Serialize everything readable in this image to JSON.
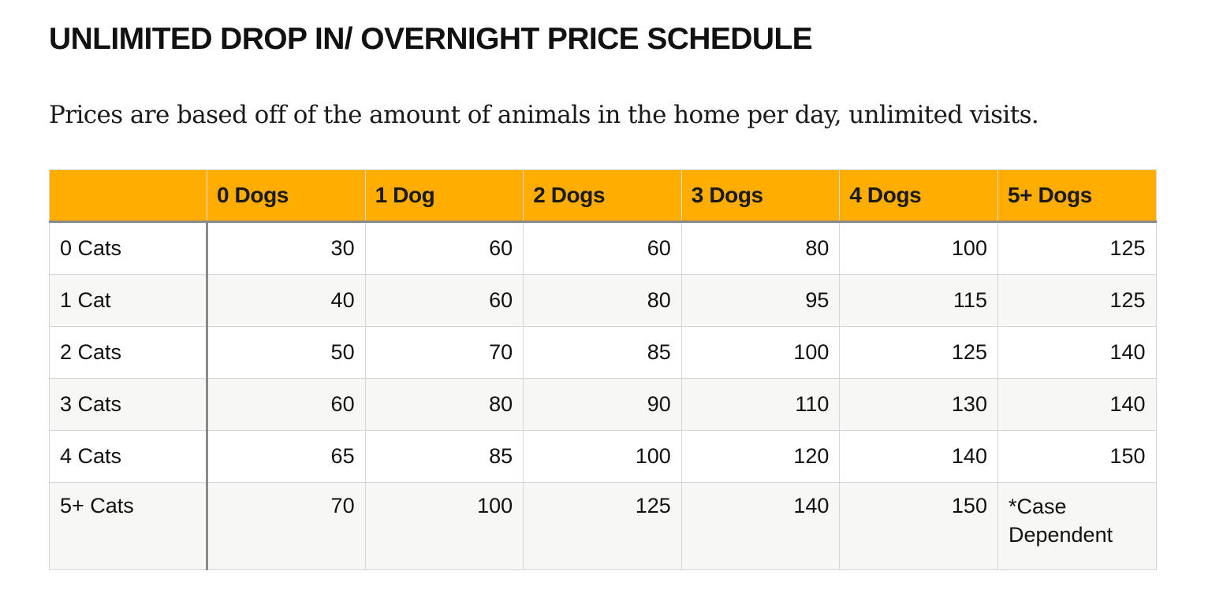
{
  "title": "UNLIMITED DROP IN/ OVERNIGHT PRICE SCHEDULE",
  "subtitle": "Prices are based off of the amount of animals in the home per day, unlimited visits.",
  "table": {
    "header": [
      "",
      "0 Dogs",
      "1 Dog",
      "2 Dogs",
      "3 Dogs",
      "4 Dogs",
      "5+ Dogs"
    ],
    "rows": [
      {
        "label": "0 Cats",
        "cells": [
          "30",
          "60",
          "60",
          "80",
          "100",
          "125"
        ]
      },
      {
        "label": "1 Cat",
        "cells": [
          "40",
          "60",
          "80",
          "95",
          "115",
          "125"
        ]
      },
      {
        "label": "2 Cats",
        "cells": [
          "50",
          "70",
          "85",
          "100",
          "125",
          "140"
        ]
      },
      {
        "label": "3 Cats",
        "cells": [
          "60",
          "80",
          "90",
          "110",
          "130",
          "140"
        ]
      },
      {
        "label": "4 Cats",
        "cells": [
          "65",
          "85",
          "100",
          "120",
          "140",
          "150"
        ]
      },
      {
        "label": "5+ Cats",
        "cells": [
          "70",
          "100",
          "125",
          "140",
          "150",
          "*Case Dependent"
        ]
      }
    ]
  },
  "colors": {
    "header_bg": "#ffad00",
    "stripe_bg": "#f7f7f5"
  }
}
